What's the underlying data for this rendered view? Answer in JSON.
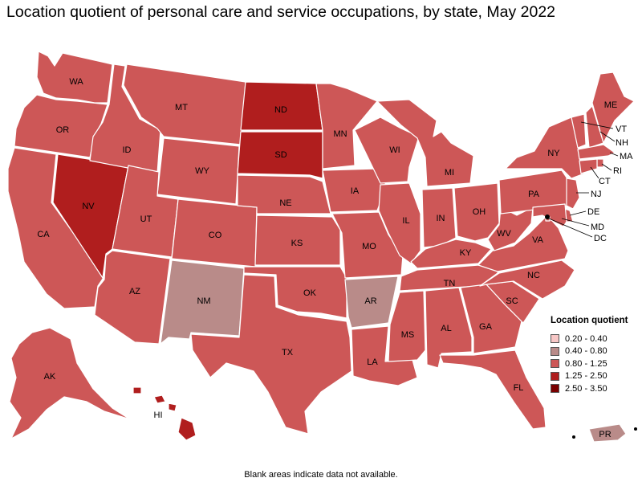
{
  "title": "Location quotient of personal care and service occupations, by state, May 2022",
  "footnote": "Blank areas indicate data not available.",
  "legend": {
    "title": "Location quotient",
    "items": [
      {
        "label": "0.20 - 0.40",
        "color": "#f7c7c6"
      },
      {
        "label": "0.40 - 0.80",
        "color": "#b98b89"
      },
      {
        "label": "0.80 - 1.25",
        "color": "#cd5757"
      },
      {
        "label": "1.25 - 2.50",
        "color": "#b01e1e"
      },
      {
        "label": "2.50 - 3.50",
        "color": "#7a0000"
      }
    ]
  },
  "states": [
    {
      "abbr": "WA",
      "bin": "0.80 - 1.25"
    },
    {
      "abbr": "OR",
      "bin": "0.80 - 1.25"
    },
    {
      "abbr": "CA",
      "bin": "0.80 - 1.25"
    },
    {
      "abbr": "NV",
      "bin": "1.25 - 2.50"
    },
    {
      "abbr": "ID",
      "bin": "0.80 - 1.25"
    },
    {
      "abbr": "MT",
      "bin": "0.80 - 1.25"
    },
    {
      "abbr": "WY",
      "bin": "0.80 - 1.25"
    },
    {
      "abbr": "UT",
      "bin": "0.80 - 1.25"
    },
    {
      "abbr": "AZ",
      "bin": "0.80 - 1.25"
    },
    {
      "abbr": "CO",
      "bin": "0.80 - 1.25"
    },
    {
      "abbr": "NM",
      "bin": "0.40 - 0.80"
    },
    {
      "abbr": "ND",
      "bin": "1.25 - 2.50"
    },
    {
      "abbr": "SD",
      "bin": "1.25 - 2.50"
    },
    {
      "abbr": "NE",
      "bin": "0.80 - 1.25"
    },
    {
      "abbr": "KS",
      "bin": "0.80 - 1.25"
    },
    {
      "abbr": "OK",
      "bin": "0.80 - 1.25"
    },
    {
      "abbr": "TX",
      "bin": "0.80 - 1.25"
    },
    {
      "abbr": "MN",
      "bin": "0.80 - 1.25"
    },
    {
      "abbr": "IA",
      "bin": "0.80 - 1.25"
    },
    {
      "abbr": "MO",
      "bin": "0.80 - 1.25"
    },
    {
      "abbr": "AR",
      "bin": "0.40 - 0.80"
    },
    {
      "abbr": "LA",
      "bin": "0.80 - 1.25"
    },
    {
      "abbr": "WI",
      "bin": "0.80 - 1.25"
    },
    {
      "abbr": "IL",
      "bin": "0.80 - 1.25"
    },
    {
      "abbr": "MI",
      "bin": "0.80 - 1.25"
    },
    {
      "abbr": "IN",
      "bin": "0.80 - 1.25"
    },
    {
      "abbr": "OH",
      "bin": "0.80 - 1.25"
    },
    {
      "abbr": "KY",
      "bin": "0.80 - 1.25"
    },
    {
      "abbr": "TN",
      "bin": "0.80 - 1.25"
    },
    {
      "abbr": "MS",
      "bin": "0.80 - 1.25"
    },
    {
      "abbr": "AL",
      "bin": "0.80 - 1.25"
    },
    {
      "abbr": "GA",
      "bin": "0.80 - 1.25"
    },
    {
      "abbr": "FL",
      "bin": "0.80 - 1.25"
    },
    {
      "abbr": "SC",
      "bin": "0.80 - 1.25"
    },
    {
      "abbr": "NC",
      "bin": "0.80 - 1.25"
    },
    {
      "abbr": "VA",
      "bin": "0.80 - 1.25"
    },
    {
      "abbr": "WV",
      "bin": "0.80 - 1.25"
    },
    {
      "abbr": "PA",
      "bin": "0.80 - 1.25"
    },
    {
      "abbr": "NY",
      "bin": "0.80 - 1.25"
    },
    {
      "abbr": "VT",
      "bin": "0.80 - 1.25"
    },
    {
      "abbr": "NH",
      "bin": "0.80 - 1.25"
    },
    {
      "abbr": "ME",
      "bin": "0.80 - 1.25"
    },
    {
      "abbr": "MA",
      "bin": "0.80 - 1.25"
    },
    {
      "abbr": "RI",
      "bin": "0.80 - 1.25"
    },
    {
      "abbr": "CT",
      "bin": "0.80 - 1.25"
    },
    {
      "abbr": "NJ",
      "bin": "0.80 - 1.25"
    },
    {
      "abbr": "DE",
      "bin": "0.80 - 1.25"
    },
    {
      "abbr": "MD",
      "bin": "0.80 - 1.25"
    },
    {
      "abbr": "DC",
      "bin": "0.80 - 1.25"
    },
    {
      "abbr": "AK",
      "bin": "0.80 - 1.25"
    },
    {
      "abbr": "HI",
      "bin": "1.25 - 2.50"
    },
    {
      "abbr": "PR",
      "bin": "0.40 - 0.80"
    }
  ]
}
